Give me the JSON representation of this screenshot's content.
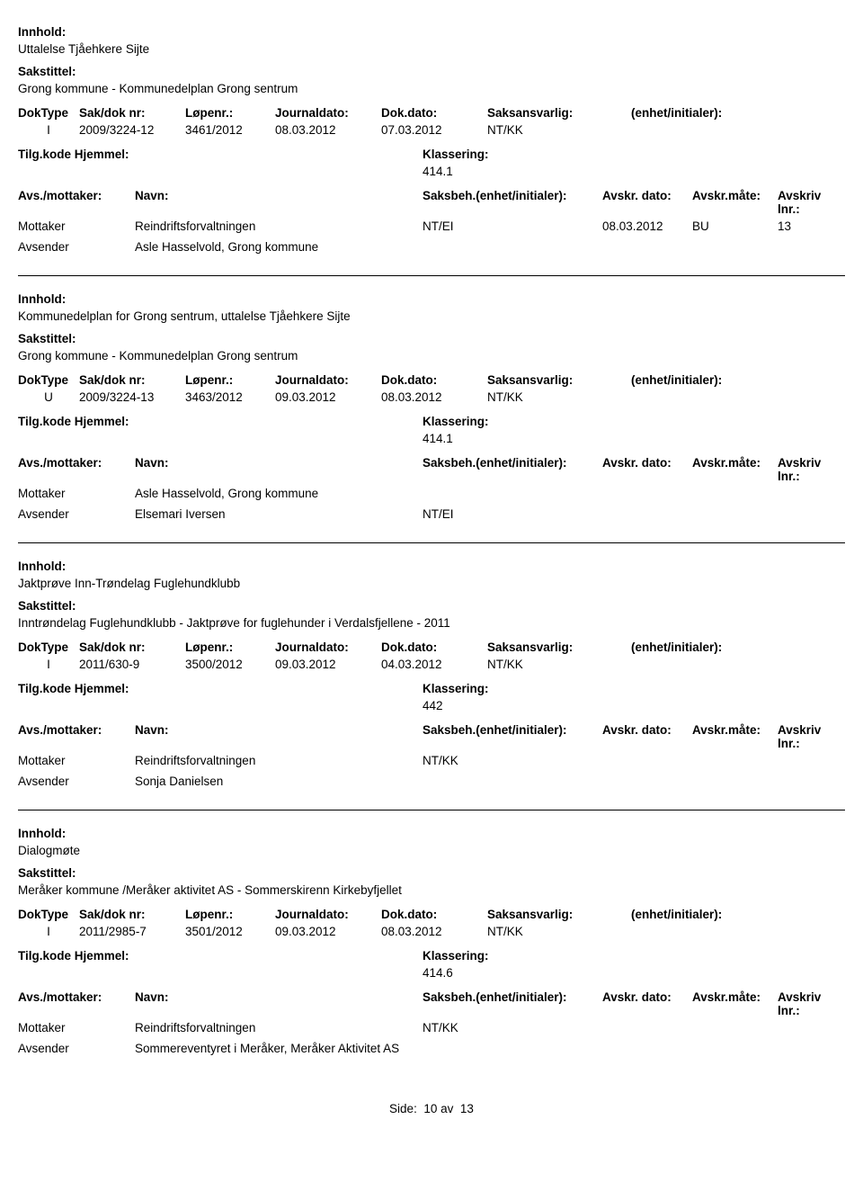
{
  "labels": {
    "innhold": "Innhold:",
    "sakstittel": "Sakstittel:",
    "doktype": "DokType",
    "sakdok": "Sak/dok nr:",
    "lopenr": "Løpenr.:",
    "journaldato": "Journaldato:",
    "dokdato": "Dok.dato:",
    "saksansvarlig": "Saksansvarlig:",
    "enhet": "(enhet/initialer):",
    "tilg_hjemmel": "Tilg.kode Hjemmel:",
    "klassering": "Klassering:",
    "avs_mottaker": "Avs./mottaker:",
    "navn": "Navn:",
    "saksbeh": "Saksbeh.(enhet/initialer):",
    "avskr_dato": "Avskr. dato:",
    "avskr_mate": "Avskr.måte:",
    "avskriv_lnr": "Avskriv lnr.:"
  },
  "records": [
    {
      "innhold": "Uttalelse Tjåehkere Sijte",
      "sakstittel": "Grong kommune - Kommunedelplan Grong sentrum",
      "doktype": "I",
      "sakdok": "2009/3224-12",
      "lopenr": "3461/2012",
      "journaldato": "08.03.2012",
      "dokdato": "07.03.2012",
      "saksansvarlig": "NT/KK",
      "klassering": "414.1",
      "parties": [
        {
          "role": "Mottaker",
          "name": "Reindriftsforvaltningen",
          "sb": "NT/EI",
          "avdato": "08.03.2012",
          "avmate": "BU",
          "avlnr": "13"
        },
        {
          "role": "Avsender",
          "name": "Asle Hasselvold, Grong kommune",
          "sb": "",
          "avdato": "",
          "avmate": "",
          "avlnr": ""
        }
      ]
    },
    {
      "innhold": "Kommunedelplan for Grong sentrum, uttalelse Tjåehkere Sijte",
      "sakstittel": "Grong kommune - Kommunedelplan Grong sentrum",
      "doktype": "U",
      "sakdok": "2009/3224-13",
      "lopenr": "3463/2012",
      "journaldato": "09.03.2012",
      "dokdato": "08.03.2012",
      "saksansvarlig": "NT/KK",
      "klassering": "414.1",
      "parties": [
        {
          "role": "Mottaker",
          "name": "Asle Hasselvold, Grong kommune",
          "sb": "",
          "avdato": "",
          "avmate": "",
          "avlnr": ""
        },
        {
          "role": "Avsender",
          "name": "Elsemari Iversen",
          "sb": "NT/EI",
          "avdato": "",
          "avmate": "",
          "avlnr": ""
        }
      ]
    },
    {
      "innhold": "Jaktprøve Inn-Trøndelag Fuglehundklubb",
      "sakstittel": "Inntrøndelag Fuglehundklubb - Jaktprøve for fuglehunder i Verdalsfjellene - 2011",
      "doktype": "I",
      "sakdok": "2011/630-9",
      "lopenr": "3500/2012",
      "journaldato": "09.03.2012",
      "dokdato": "04.03.2012",
      "saksansvarlig": "NT/KK",
      "klassering": "442",
      "parties": [
        {
          "role": "Mottaker",
          "name": "Reindriftsforvaltningen",
          "sb": "NT/KK",
          "avdato": "",
          "avmate": "",
          "avlnr": ""
        },
        {
          "role": "Avsender",
          "name": "Sonja Danielsen",
          "sb": "",
          "avdato": "",
          "avmate": "",
          "avlnr": ""
        }
      ]
    },
    {
      "innhold": "Dialogmøte",
      "sakstittel": "Meråker kommune /Meråker aktivitet AS - Sommerskirenn Kirkebyfjellet",
      "doktype": "I",
      "sakdok": "2011/2985-7",
      "lopenr": "3501/2012",
      "journaldato": "09.03.2012",
      "dokdato": "08.03.2012",
      "saksansvarlig": "NT/KK",
      "klassering": "414.6",
      "parties": [
        {
          "role": "Mottaker",
          "name": "Reindriftsforvaltningen",
          "sb": "NT/KK",
          "avdato": "",
          "avmate": "",
          "avlnr": ""
        },
        {
          "role": "Avsender",
          "name": "Sommereventyret i Meråker, Meråker Aktivitet AS",
          "sb": "",
          "avdato": "",
          "avmate": "",
          "avlnr": ""
        }
      ]
    }
  ],
  "pager": {
    "side": "Side:",
    "page": "10",
    "av": "av",
    "total": "13"
  }
}
